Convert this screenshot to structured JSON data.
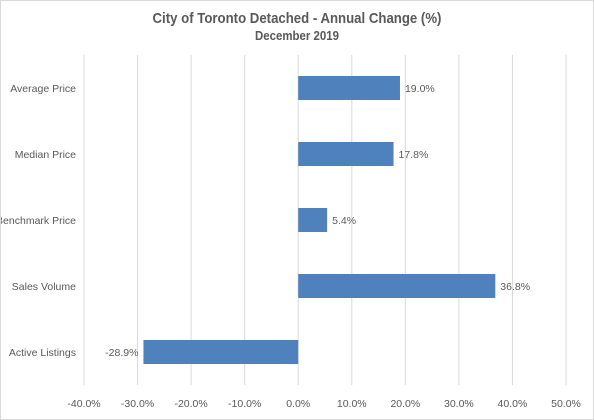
{
  "chart_data": {
    "type": "bar",
    "orientation": "horizontal",
    "title": "City of Toronto Detached - Annual Change (%)",
    "subtitle": "December 2019",
    "categories": [
      "Average Price",
      "Median Price",
      "Benchmark Price",
      "Sales Volume",
      "Active Listings"
    ],
    "values": [
      19.0,
      17.8,
      5.4,
      36.8,
      -28.9
    ],
    "data_labels": [
      "19.0%",
      "17.8%",
      "5.4%",
      "36.8%",
      "-28.9%"
    ],
    "xlim": [
      -40,
      50
    ],
    "x_ticks": [
      -40,
      -30,
      -20,
      -10,
      0,
      10,
      20,
      30,
      40,
      50
    ],
    "x_tick_labels": [
      "-40.0%",
      "-30.0%",
      "-20.0%",
      "-10.0%",
      "0.0%",
      "10.0%",
      "20.0%",
      "30.0%",
      "40.0%",
      "50.0%"
    ],
    "grid": "vertical",
    "legend": "none",
    "bar_color": "#4f81bd",
    "grid_color": "#d9d9d9"
  }
}
